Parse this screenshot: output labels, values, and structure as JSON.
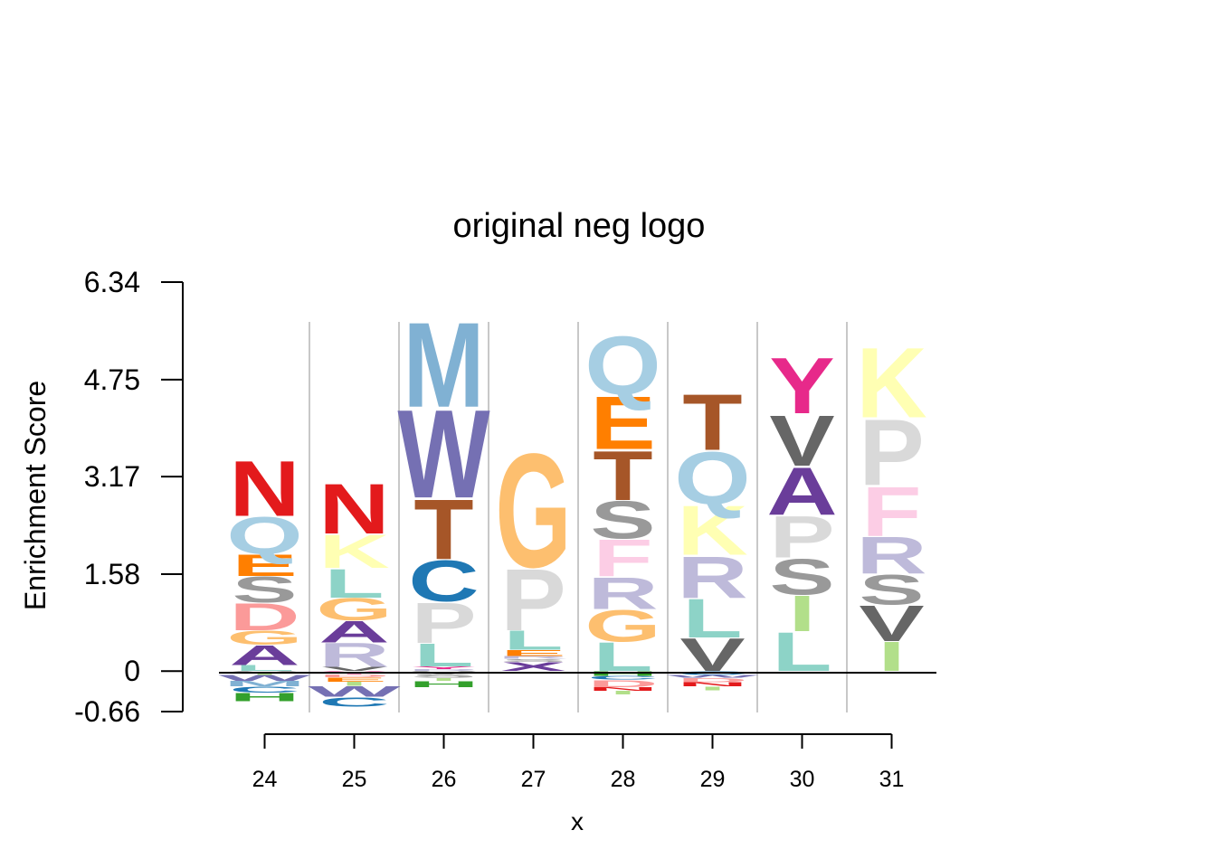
{
  "chart_data": {
    "type": "sequence-logo",
    "title": "original neg logo",
    "xlabel": "x",
    "ylabel": "Enrichment Score",
    "ylim": [
      -0.66,
      6.34
    ],
    "yticks": [
      "6.34",
      "4.75",
      "3.17",
      "1.58",
      "0",
      "-0.66"
    ],
    "ytick_values": [
      6.34,
      4.75,
      3.17,
      1.58,
      0,
      -0.66
    ],
    "positions": [
      "24",
      "25",
      "26",
      "27",
      "28",
      "29",
      "30",
      "31"
    ],
    "grid": "vertical separators between positions",
    "colors": {
      "A": "#6a3d9a",
      "C": "#1f78b4",
      "D": "#fb9a99",
      "E": "#ff7f00",
      "F": "#fccde5",
      "G": "#fdbf6f",
      "H": "#33a02c",
      "I": "#b2df8a",
      "K": "#ffffb3",
      "L": "#8dd3c7",
      "M": "#80b1d3",
      "N": "#e31a1c",
      "P": "#d9d9d9",
      "Q": "#a6cee3",
      "R": "#bebada",
      "S": "#999999",
      "T": "#a65628",
      "V": "#666666",
      "W": "#7570b3",
      "Y": "#e7298a",
      "X": "#6a3d9a"
    },
    "stacks": [
      {
        "position": "24",
        "positive": [
          {
            "letter": "L",
            "value": 0.1
          },
          {
            "letter": "A",
            "value": 0.33
          },
          {
            "letter": "G",
            "value": 0.24
          },
          {
            "letter": "D",
            "value": 0.45
          },
          {
            "letter": "S",
            "value": 0.43
          },
          {
            "letter": "E",
            "value": 0.36
          },
          {
            "letter": "Q",
            "value": 0.62
          },
          {
            "letter": "N",
            "value": 0.93
          }
        ],
        "negative": [
          {
            "letter": "V",
            "value": 0.03
          },
          {
            "letter": "I",
            "value": 0.03
          },
          {
            "letter": "W",
            "value": 0.1
          },
          {
            "letter": "M",
            "value": 0.09
          },
          {
            "letter": "C",
            "value": 0.1
          },
          {
            "letter": "H",
            "value": 0.14
          }
        ]
      },
      {
        "position": "25",
        "positive": [
          {
            "letter": "V",
            "value": 0.07
          },
          {
            "letter": "R",
            "value": 0.4
          },
          {
            "letter": "A",
            "value": 0.36
          },
          {
            "letter": "G",
            "value": 0.37
          },
          {
            "letter": "L",
            "value": 0.48
          },
          {
            "letter": "K",
            "value": 0.56
          },
          {
            "letter": "N",
            "value": 0.84
          }
        ],
        "negative": [
          {
            "letter": "Y",
            "value": 0.05
          },
          {
            "letter": "D",
            "value": 0.05
          },
          {
            "letter": "E",
            "value": 0.07
          },
          {
            "letter": "I",
            "value": 0.07
          },
          {
            "letter": "W",
            "value": 0.18
          },
          {
            "letter": "C",
            "value": 0.16
          }
        ]
      },
      {
        "position": "26",
        "positive": [
          {
            "letter": "R",
            "value": 0.03
          },
          {
            "letter": "Y",
            "value": 0.05
          },
          {
            "letter": "L",
            "value": 0.38
          },
          {
            "letter": "P",
            "value": 0.68
          },
          {
            "letter": "C",
            "value": 0.69
          },
          {
            "letter": "T",
            "value": 1.0
          },
          {
            "letter": "W",
            "value": 1.48
          },
          {
            "letter": "M",
            "value": 1.42
          }
        ],
        "negative": [
          {
            "letter": "V",
            "value": 0.05
          },
          {
            "letter": "S",
            "value": 0.06
          },
          {
            "letter": "I",
            "value": 0.05
          },
          {
            "letter": "H",
            "value": 0.1
          }
        ]
      },
      {
        "position": "27",
        "positive": [
          {
            "letter": "X",
            "value": 0.15
          },
          {
            "letter": "S",
            "value": 0.05
          },
          {
            "letter": "R",
            "value": 0.05
          },
          {
            "letter": "E",
            "value": 0.1
          },
          {
            "letter": "L",
            "value": 0.32
          },
          {
            "letter": "P",
            "value": 1.03
          },
          {
            "letter": "G",
            "value": 1.91
          }
        ],
        "negative": []
      },
      {
        "position": "28",
        "positive": [
          {
            "letter": "L",
            "value": 0.48
          },
          {
            "letter": "G",
            "value": 0.53
          },
          {
            "letter": "R",
            "value": 0.53
          },
          {
            "letter": "F",
            "value": 0.62
          },
          {
            "letter": "S",
            "value": 0.63
          },
          {
            "letter": "T",
            "value": 0.83
          },
          {
            "letter": "E",
            "value": 0.89
          },
          {
            "letter": "Q",
            "value": 0.97
          }
        ],
        "negative": [
          {
            "letter": "H",
            "value": 0.08
          },
          {
            "letter": "C",
            "value": 0.06
          },
          {
            "letter": "D",
            "value": 0.12
          },
          {
            "letter": "N",
            "value": 0.06
          },
          {
            "letter": "I",
            "value": 0.06
          }
        ]
      },
      {
        "position": "29",
        "positive": [
          {
            "letter": "V",
            "value": 0.55
          },
          {
            "letter": "L",
            "value": 0.65
          },
          {
            "letter": "R",
            "value": 0.7
          },
          {
            "letter": "K",
            "value": 0.83
          },
          {
            "letter": "Q",
            "value": 0.88
          },
          {
            "letter": "T",
            "value": 0.94
          }
        ],
        "negative": [
          {
            "letter": "C",
            "value": 0.06
          },
          {
            "letter": "W",
            "value": 0.05
          },
          {
            "letter": "D",
            "value": 0.07
          },
          {
            "letter": "N",
            "value": 0.07
          },
          {
            "letter": "I",
            "value": 0.06
          }
        ]
      },
      {
        "position": "30",
        "positive": [
          {
            "letter": "L",
            "value": 0.65
          },
          {
            "letter": "I",
            "value": 0.6
          },
          {
            "letter": "S",
            "value": 0.6
          },
          {
            "letter": "P",
            "value": 0.7
          },
          {
            "letter": "A",
            "value": 0.8
          },
          {
            "letter": "V",
            "value": 0.85
          },
          {
            "letter": "Y",
            "value": 0.94
          }
        ],
        "negative": []
      },
      {
        "position": "31",
        "positive": [
          {
            "letter": "I",
            "value": 0.49
          },
          {
            "letter": "V",
            "value": 0.6
          },
          {
            "letter": "S",
            "value": 0.5
          },
          {
            "letter": "R",
            "value": 0.62
          },
          {
            "letter": "F",
            "value": 0.83
          },
          {
            "letter": "P",
            "value": 1.1
          },
          {
            "letter": "K",
            "value": 1.17
          }
        ],
        "negative": []
      }
    ]
  }
}
